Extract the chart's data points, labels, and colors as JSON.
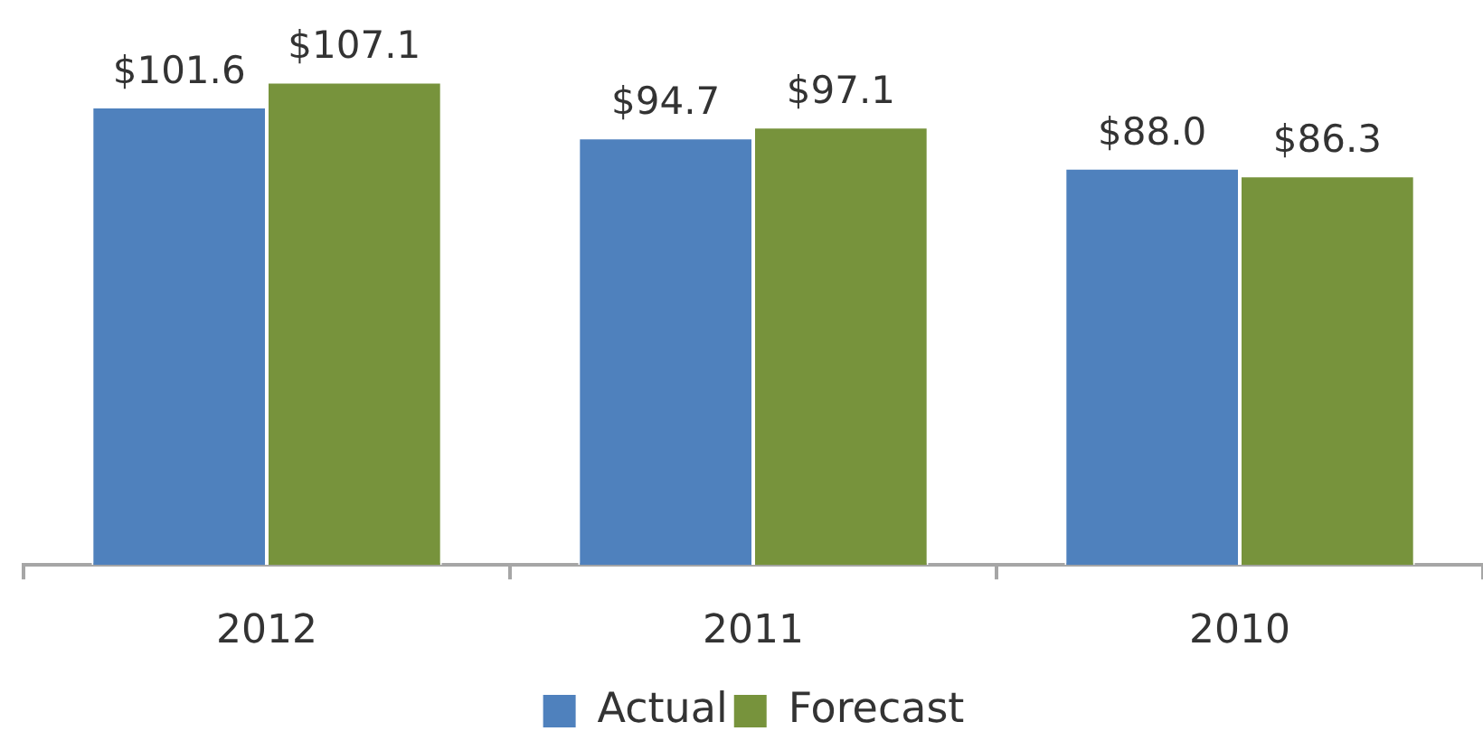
{
  "chart_data": {
    "type": "bar",
    "categories": [
      "2012",
      "2011",
      "2010"
    ],
    "series": [
      {
        "name": "Actual",
        "color": "#4f81bd",
        "values": [
          101.6,
          94.7,
          88.0
        ],
        "value_labels": [
          "$101.6",
          "$94.7",
          "$88.0"
        ]
      },
      {
        "name": "Forecast",
        "color": "#77933c",
        "values": [
          107.1,
          97.1,
          86.3
        ],
        "value_labels": [
          "$107.1",
          "$97.1",
          "$86.3"
        ]
      }
    ],
    "tick_labels": "x",
    "grid": false,
    "legend": "bottom"
  }
}
